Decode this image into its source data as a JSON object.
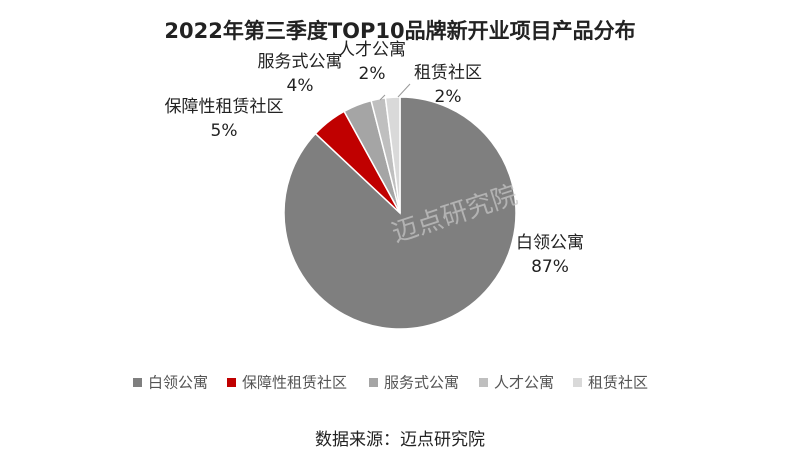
{
  "chart_data": {
    "type": "pie",
    "title": "2022年第三季度TOP10品牌新开业项目产品分布",
    "categories": [
      "白领公寓",
      "保障性租赁社区",
      "服务式公寓",
      "人才公寓",
      "租赁社区"
    ],
    "values": [
      87,
      5,
      4,
      2,
      2
    ],
    "value_labels": [
      "87%",
      "5%",
      "4%",
      "2%",
      "2%"
    ],
    "colors": [
      "#7f7f7f",
      "#c00000",
      "#a5a5a5",
      "#bfbfbf",
      "#d9d9d9"
    ],
    "legend": "bottom",
    "watermark": "迈点研究院",
    "source": "数据来源：迈点研究院"
  }
}
